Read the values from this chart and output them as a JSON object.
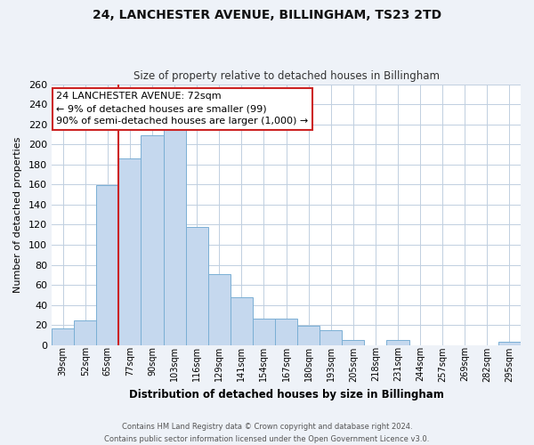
{
  "title": "24, LANCHESTER AVENUE, BILLINGHAM, TS23 2TD",
  "subtitle": "Size of property relative to detached houses in Billingham",
  "xlabel": "Distribution of detached houses by size in Billingham",
  "ylabel": "Number of detached properties",
  "categories": [
    "39sqm",
    "52sqm",
    "65sqm",
    "77sqm",
    "90sqm",
    "103sqm",
    "116sqm",
    "129sqm",
    "141sqm",
    "154sqm",
    "167sqm",
    "180sqm",
    "193sqm",
    "205sqm",
    "218sqm",
    "231sqm",
    "244sqm",
    "257sqm",
    "269sqm",
    "282sqm",
    "295sqm"
  ],
  "values": [
    17,
    25,
    159,
    186,
    209,
    215,
    118,
    71,
    48,
    26,
    26,
    19,
    15,
    5,
    0,
    5,
    0,
    0,
    0,
    0,
    3
  ],
  "bar_color": "#c5d8ee",
  "bar_edge_color": "#7aafd4",
  "annotation_line1": "24 LANCHESTER AVENUE: 72sqm",
  "annotation_line2": "← 9% of detached houses are smaller (99)",
  "annotation_line3": "90% of semi-detached houses are larger (1,000) →",
  "annotation_box_color": "#ffffff",
  "annotation_box_edge_color": "#cc2222",
  "red_line_x": 2.5,
  "ylim": [
    0,
    260
  ],
  "yticks": [
    0,
    20,
    40,
    60,
    80,
    100,
    120,
    140,
    160,
    180,
    200,
    220,
    240,
    260
  ],
  "footer_line1": "Contains HM Land Registry data © Crown copyright and database right 2024.",
  "footer_line2": "Contains public sector information licensed under the Open Government Licence v3.0.",
  "bg_color": "#eef2f8",
  "plot_bg_color": "#ffffff",
  "grid_color": "#c0cfe0"
}
